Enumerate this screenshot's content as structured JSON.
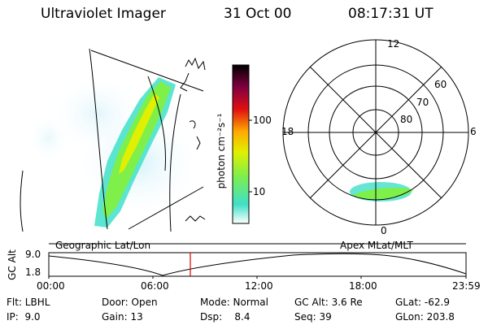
{
  "header": {
    "instrument": "Ultraviolet Imager",
    "date": "31 Oct 00",
    "time": "08:17:31 UT"
  },
  "colorbar": {
    "unit_label": "photon cm⁻²s⁻¹",
    "ticks": [
      "100",
      "10"
    ],
    "colors": [
      "#ffffff",
      "#3fe0c8",
      "#7fef4a",
      "#e0f000",
      "#ffaa00",
      "#e01010",
      "#800040",
      "#000000"
    ]
  },
  "geographic_panel": {
    "caption": "Geographic Lat/Lon"
  },
  "polar_panel": {
    "caption": "Apex MLat/MLT",
    "mlt_labels": [
      "12",
      "18",
      "6",
      "0"
    ],
    "lat_labels": [
      "60",
      "70",
      "80"
    ]
  },
  "altitude_track": {
    "axis_title": "GC Alt",
    "y_ticks": [
      "9.0",
      "1.8"
    ],
    "x_ticks": [
      "00:00",
      "06:00",
      "12:00",
      "18:00",
      "23:59"
    ],
    "marker_color": "#dd0000"
  },
  "info_grid": {
    "rows": [
      [
        "Flt: LBHL",
        "Door: Open",
        "Mode: Normal",
        "GC Alt: 3.6 Re",
        "GLat: -62.9"
      ],
      [
        "IP:  9.0",
        "Gain: 13",
        "Dsp:    8.4",
        "Seq: 39",
        "GLon: 203.8"
      ]
    ]
  }
}
